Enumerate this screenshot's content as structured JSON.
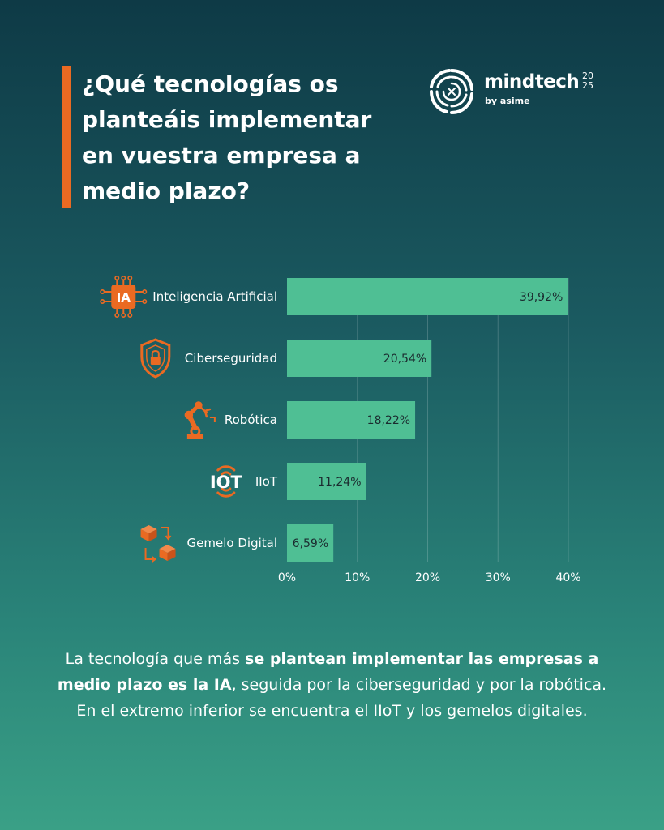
{
  "title": "¿Qué tecnologías os planteáis implementar en vuestra empresa a medio plazo?",
  "logo": {
    "name": "mindtech",
    "year_top": "20",
    "year_bottom": "25",
    "sub": "by asime",
    "icon": "mindtech-swirl-logo"
  },
  "colors": {
    "accent": "#ea6a22",
    "bar": "#4fbf94",
    "icon": "#ea6a22"
  },
  "chart_data": {
    "type": "bar",
    "orientation": "horizontal",
    "categories": [
      "Inteligencia Artificial",
      "Ciberseguridad",
      "Robótica",
      "IIoT",
      "Gemelo Digital"
    ],
    "values": [
      39.92,
      20.54,
      18.22,
      11.24,
      6.59
    ],
    "value_labels": [
      "39,92%",
      "20,54%",
      "18,22%",
      "11,24%",
      "6,59%"
    ],
    "category_icons": [
      "ai-chip-icon",
      "shield-lock-icon",
      "robot-arm-icon",
      "iot-signal-icon",
      "digital-twin-cubes-icon"
    ],
    "ai_icon_text": "IA",
    "iot_icon_text": "IOT",
    "xlim": [
      0,
      40
    ],
    "xticks": [
      0,
      10,
      20,
      30,
      40
    ],
    "xtick_labels": [
      "0%",
      "10%",
      "20%",
      "30%",
      "40%"
    ],
    "grid": true
  },
  "caption": {
    "part1": "La tecnología que más ",
    "bold": "se plantean implementar las empresas a medio plazo es la IA",
    "part2": ", seguida por la ciberseguridad y por la robótica. En el extremo inferior se encuentra el IIoT y los gemelos digitales."
  }
}
